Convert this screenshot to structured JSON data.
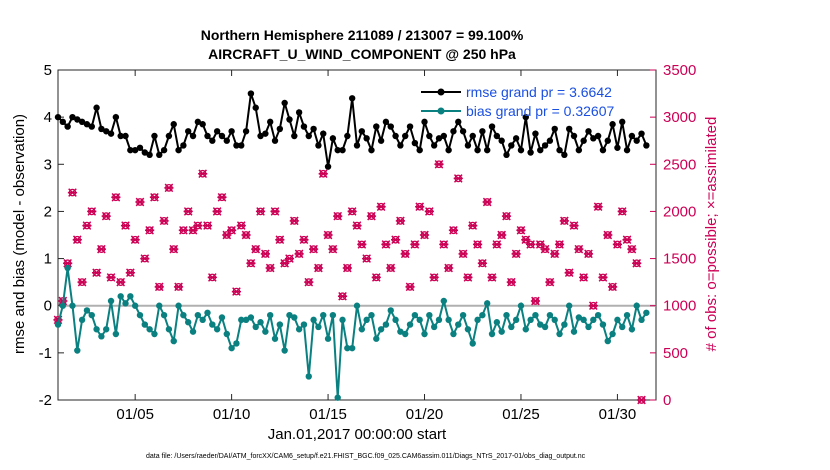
{
  "chart_data": {
    "type": "line",
    "title": "Northern Hemisphere 211089 / 213007 = 99.100%",
    "subtitle": "AIRCRAFT_U_WIND_COMPONENT @ 250 hPa",
    "xlabel": "Jan.01,2017 00:00:00 start",
    "ylabel": "rmse and bias (model - observation)",
    "y2label": "# of obs: o=possible; ×=assimilated",
    "ylim": [
      -2,
      5
    ],
    "y2lim": [
      0,
      3500
    ],
    "xlim": [
      1,
      32
    ],
    "yticks": [
      "-2",
      "-1",
      "0",
      "1",
      "2",
      "3",
      "4",
      "5"
    ],
    "y2ticks": [
      "0",
      "500",
      "1000",
      "1500",
      "2000",
      "2500",
      "3000",
      "3500"
    ],
    "xticks": [
      {
        "x": 5,
        "label": "01/05"
      },
      {
        "x": 10,
        "label": "01/10"
      },
      {
        "x": 15,
        "label": "01/15"
      },
      {
        "x": 20,
        "label": "01/20"
      },
      {
        "x": 25,
        "label": "01/25"
      },
      {
        "x": 30,
        "label": "01/30"
      }
    ],
    "zero_line": 0,
    "legend_position": "top-right",
    "footnote": "data file: /Users/raeder/DAI/ATM_forcXX/CAM6_setup/f.e21.FHIST_BGC.f09_025.CAM6assim.011/Diags_NTrS_2017-01/obs_diag_output.nc",
    "series": [
      {
        "name": "rmse",
        "legend": "rmse grand pr = 3.6642",
        "color": "#000000",
        "x_start": 1.0,
        "x_step": 0.25,
        "values": [
          4.0,
          3.9,
          3.8,
          4.0,
          3.95,
          3.9,
          3.85,
          3.8,
          4.2,
          3.75,
          3.7,
          3.65,
          4.0,
          3.6,
          3.6,
          3.3,
          3.3,
          3.35,
          3.25,
          3.2,
          3.6,
          3.2,
          3.3,
          3.6,
          3.85,
          3.3,
          3.4,
          3.7,
          3.6,
          3.9,
          3.85,
          3.6,
          3.5,
          3.7,
          3.6,
          3.5,
          3.7,
          3.4,
          3.4,
          3.7,
          4.5,
          4.2,
          3.6,
          3.65,
          3.9,
          3.5,
          3.75,
          4.3,
          3.95,
          3.6,
          4.1,
          3.8,
          3.6,
          3.75,
          3.4,
          3.65,
          2.95,
          3.55,
          3.3,
          3.3,
          3.6,
          4.4,
          3.4,
          3.7,
          3.55,
          3.3,
          3.8,
          3.5,
          3.9,
          3.8,
          3.6,
          3.4,
          3.6,
          3.8,
          3.45,
          3.3,
          3.9,
          3.6,
          3.4,
          3.55,
          3.6,
          3.3,
          3.7,
          3.9,
          3.7,
          3.4,
          3.6,
          3.3,
          3.7,
          3.3,
          3.8,
          3.6,
          3.5,
          3.2,
          3.4,
          3.55,
          3.3,
          4.0,
          3.25,
          3.65,
          3.3,
          3.4,
          3.5,
          3.75,
          3.3,
          3.2,
          3.75,
          3.6,
          3.3,
          3.5,
          3.7,
          3.55,
          3.6,
          3.3,
          3.5,
          3.85,
          3.35,
          3.9,
          3.3,
          3.6,
          3.5,
          3.65,
          3.4
        ]
      },
      {
        "name": "bias",
        "legend": "bias grand pr = 0.32607",
        "color": "#0a8080",
        "x_start": 1.0,
        "x_step": 0.25,
        "values": [
          -0.4,
          0.0,
          0.8,
          0.0,
          -0.95,
          -0.3,
          -0.1,
          -0.2,
          -0.5,
          -0.65,
          -0.5,
          0.1,
          -0.6,
          0.2,
          0.05,
          0.2,
          0.0,
          -0.2,
          -0.4,
          -0.5,
          -0.6,
          0.0,
          -0.2,
          -0.5,
          -0.75,
          0.0,
          -0.2,
          -0.35,
          -0.55,
          -0.2,
          -0.3,
          -0.15,
          -0.4,
          -0.5,
          -0.25,
          -0.6,
          -0.9,
          -0.8,
          -0.3,
          -0.3,
          -0.25,
          -0.45,
          -0.35,
          -0.55,
          -0.2,
          -0.7,
          -0.4,
          -0.95,
          -0.2,
          -0.25,
          -0.5,
          -0.4,
          -1.5,
          -0.3,
          -0.45,
          -0.2,
          -0.7,
          -0.2,
          -1.95,
          -0.3,
          -0.9,
          -0.9,
          0.0,
          -0.5,
          -0.3,
          -0.2,
          -0.7,
          -0.5,
          -0.4,
          -0.1,
          -0.3,
          -0.55,
          -0.6,
          -0.4,
          -0.2,
          -0.3,
          -0.6,
          -0.2,
          -0.45,
          -0.3,
          0.1,
          -0.3,
          -0.6,
          -0.4,
          -0.2,
          -0.5,
          -0.8,
          -0.3,
          -0.2,
          0.05,
          -0.6,
          -0.35,
          -0.55,
          -0.2,
          -0.45,
          -0.3,
          0.0,
          -0.5,
          -0.3,
          -0.2,
          -0.4,
          -0.45,
          -0.2,
          -0.3,
          -0.6,
          -0.4,
          0.0,
          -0.55,
          -0.25,
          -0.3,
          -0.45,
          -0.3,
          -0.2,
          -0.4,
          -0.75,
          -0.6,
          -0.3,
          -0.45,
          -0.2,
          -0.5,
          0.0,
          -0.3,
          -0.15
        ]
      }
    ],
    "obs_counts": {
      "color": "#cc0055",
      "axis": "right",
      "x_start": 1.0,
      "x_step": 0.25,
      "possible": [
        850,
        1050,
        1450,
        2200,
        1700,
        1250,
        1850,
        2000,
        1350,
        1600,
        1950,
        1300,
        2150,
        1250,
        1850,
        1350,
        1700,
        2100,
        1500,
        1800,
        2150,
        1200,
        1900,
        2250,
        1600,
        1200,
        1800,
        2000,
        1800,
        1850,
        2400,
        1850,
        1300,
        2000,
        2150,
        1750,
        1800,
        1150,
        1850,
        1750,
        1450,
        1600,
        2000,
        1550,
        1400,
        2000,
        1700,
        1450,
        1500,
        1900,
        1550,
        1700,
        1250,
        1600,
        1400,
        2400,
        1750,
        1600,
        1950,
        1100,
        1400,
        2000,
        1850,
        1650,
        1500,
        1950,
        1300,
        2050,
        1650,
        1400,
        1700,
        1900,
        1550,
        1200,
        1650,
        2050,
        1750,
        2000,
        1300,
        2500,
        1650,
        1400,
        1800,
        2350,
        1550,
        1300,
        1850,
        1650,
        1450,
        2100,
        1300,
        1650,
        1750,
        1950,
        1250,
        1550,
        1800,
        1700,
        1650,
        1050,
        1650,
        1600,
        1250,
        1550,
        1650,
        1900,
        1350,
        1850,
        1600,
        1300,
        1550,
        1000,
        2050,
        1300,
        1750,
        1200,
        1650,
        2000,
        1700,
        1600,
        1450,
        0
      ]
    }
  }
}
